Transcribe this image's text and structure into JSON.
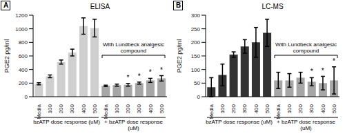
{
  "chart_data": [
    {
      "type": "bar",
      "panel": "A",
      "title": "ELISA",
      "y_label": "PGE2 pg/ml",
      "categories": [
        "Media",
        "100",
        "200",
        "300",
        "400",
        "500",
        "Media",
        "100",
        "200",
        "300",
        "400",
        "500"
      ],
      "values": [
        190,
        300,
        510,
        650,
        1040,
        1010,
        160,
        170,
        175,
        200,
        240,
        270
      ],
      "errors": [
        15,
        20,
        30,
        50,
        120,
        130,
        10,
        15,
        20,
        15,
        30,
        40
      ],
      "colors": [
        "#cfcfcf",
        "#cfcfcf",
        "#cfcfcf",
        "#cfcfcf",
        "#cfcfcf",
        "#cfcfcf",
        "#a6a6a6",
        "#a6a6a6",
        "#a6a6a6",
        "#a6a6a6",
        "#a6a6a6",
        "#a6a6a6"
      ],
      "marks": [
        null,
        null,
        null,
        null,
        null,
        null,
        null,
        null,
        "*",
        "*",
        "*",
        "*"
      ],
      "groups": [
        {
          "label": "bzATP dose response (uM)",
          "count": 6
        },
        {
          "label": "+ bzATP dose response (uM)",
          "count": 6
        }
      ],
      "annotation": "With Lundbeck analgesic compound",
      "ylim": [
        0,
        1200
      ],
      "yticks": [
        0,
        200,
        400,
        600,
        800,
        1000,
        1200
      ],
      "grid": false
    },
    {
      "type": "bar",
      "panel": "B",
      "title": "LC-MS",
      "y_label": "PGE2 pg/ml",
      "categories": [
        "Media",
        "100",
        "200",
        "300",
        "400",
        "500",
        "Media",
        "100",
        "200",
        "300",
        "400",
        "500"
      ],
      "values": [
        35,
        80,
        155,
        185,
        200,
        235,
        60,
        60,
        70,
        55,
        50,
        60
      ],
      "errors": [
        35,
        40,
        10,
        25,
        55,
        50,
        30,
        25,
        20,
        15,
        25,
        50
      ],
      "colors": [
        "#333333",
        "#333333",
        "#333333",
        "#333333",
        "#333333",
        "#333333",
        "#a6a6a6",
        "#a6a6a6",
        "#a6a6a6",
        "#a6a6a6",
        "#a6a6a6",
        "#a6a6a6"
      ],
      "marks": [
        null,
        null,
        null,
        null,
        null,
        null,
        null,
        null,
        null,
        "*",
        "*",
        "*"
      ],
      "groups": [
        {
          "label": "bzATP dose response (uM)",
          "count": 6
        },
        {
          "label": "+ bzATP dose response (uM)",
          "count": 6
        }
      ],
      "annotation": "With Lundbeck analgesic compound",
      "ylim": [
        0,
        300
      ],
      "yticks": [
        0,
        50,
        100,
        150,
        200,
        250,
        300
      ],
      "grid": false
    }
  ]
}
